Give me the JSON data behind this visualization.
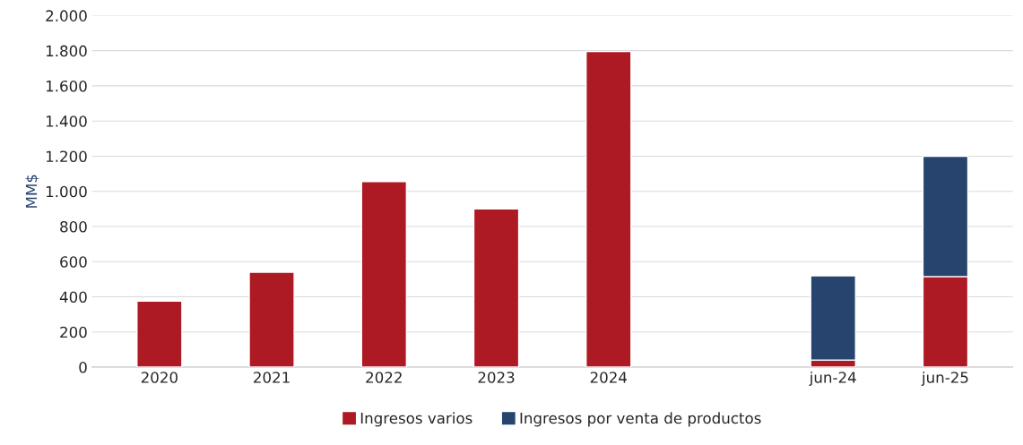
{
  "chart_data": {
    "type": "bar",
    "stacked": true,
    "ylabel": "MM$",
    "categories": [
      "2020",
      "2021",
      "2022",
      "2023",
      "2024",
      null,
      "jun-24",
      "jun-25"
    ],
    "series": [
      {
        "name": "Ingresos varios",
        "color": "#ae1a24",
        "values": [
          375,
          540,
          1055,
          900,
          1795,
          null,
          40,
          515
        ]
      },
      {
        "name": "Ingresos por venta de productos",
        "color": "#27446f",
        "values": [
          null,
          null,
          null,
          null,
          null,
          null,
          480,
          685
        ]
      }
    ],
    "ylim": [
      0,
      2000
    ],
    "yticks": [
      {
        "value": 0,
        "label": "0"
      },
      {
        "value": 200,
        "label": "200"
      },
      {
        "value": 400,
        "label": "400"
      },
      {
        "value": 600,
        "label": "600"
      },
      {
        "value": 800,
        "label": "800"
      },
      {
        "value": 1000,
        "label": "1.000"
      },
      {
        "value": 1200,
        "label": "1.200"
      },
      {
        "value": 1400,
        "label": "1.400"
      },
      {
        "value": 1600,
        "label": "1.600"
      },
      {
        "value": 1800,
        "label": "1.800"
      },
      {
        "value": 2000,
        "label": "2.000"
      }
    ],
    "grid": "y",
    "legend": "bottom"
  }
}
